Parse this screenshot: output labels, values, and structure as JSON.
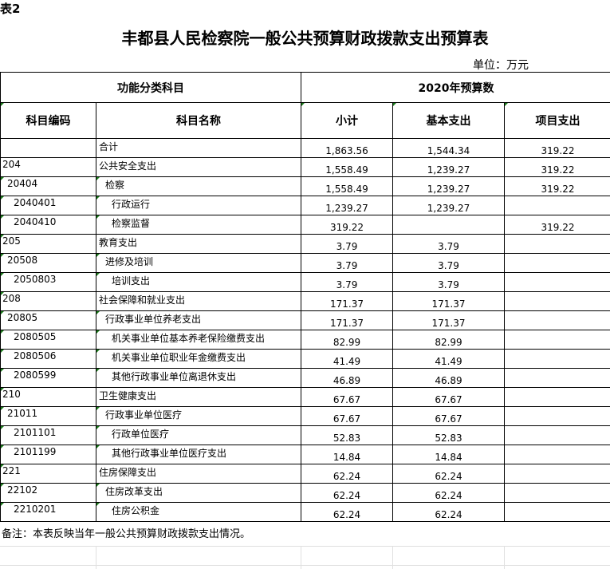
{
  "table_tag": "表2",
  "title": "丰都县人民检察院一般公共预算财政拨款支出预算表",
  "unit": "单位：万元",
  "header": {
    "group_left": "功能分类科目",
    "group_right": "2020年预算数",
    "code": "科目编码",
    "name": "科目名称",
    "subtotal": "小计",
    "basic": "基本支出",
    "project": "项目支出"
  },
  "rows": [
    {
      "code": "",
      "name": "合计",
      "subtotal": "1,863.56",
      "basic": "1,544.34",
      "project": "319.22",
      "level": 0
    },
    {
      "code": "204",
      "name": "公共安全支出",
      "subtotal": "1,558.49",
      "basic": "1,239.27",
      "project": "319.22",
      "level": 0
    },
    {
      "code": "20404",
      "name": "检察",
      "subtotal": "1,558.49",
      "basic": "1,239.27",
      "project": "319.22",
      "level": 1
    },
    {
      "code": "2040401",
      "name": "行政运行",
      "subtotal": "1,239.27",
      "basic": "1,239.27",
      "project": "",
      "level": 2
    },
    {
      "code": "2040410",
      "name": "检察监督",
      "subtotal": "319.22",
      "basic": "",
      "project": "319.22",
      "level": 2
    },
    {
      "code": "205",
      "name": "教育支出",
      "subtotal": "3.79",
      "basic": "3.79",
      "project": "",
      "level": 0
    },
    {
      "code": "20508",
      "name": "进修及培训",
      "subtotal": "3.79",
      "basic": "3.79",
      "project": "",
      "level": 1
    },
    {
      "code": "2050803",
      "name": "培训支出",
      "subtotal": "3.79",
      "basic": "3.79",
      "project": "",
      "level": 2
    },
    {
      "code": "208",
      "name": "社会保障和就业支出",
      "subtotal": "171.37",
      "basic": "171.37",
      "project": "",
      "level": 0
    },
    {
      "code": "20805",
      "name": "行政事业单位养老支出",
      "subtotal": "171.37",
      "basic": "171.37",
      "project": "",
      "level": 1
    },
    {
      "code": "2080505",
      "name": "机关事业单位基本养老保险缴费支出",
      "subtotal": "82.99",
      "basic": "82.99",
      "project": "",
      "level": 2
    },
    {
      "code": "2080506",
      "name": "机关事业单位职业年金缴费支出",
      "subtotal": "41.49",
      "basic": "41.49",
      "project": "",
      "level": 2
    },
    {
      "code": "2080599",
      "name": "其他行政事业单位离退休支出",
      "subtotal": "46.89",
      "basic": "46.89",
      "project": "",
      "level": 2
    },
    {
      "code": "210",
      "name": "卫生健康支出",
      "subtotal": "67.67",
      "basic": "67.67",
      "project": "",
      "level": 0
    },
    {
      "code": "21011",
      "name": "行政事业单位医疗",
      "subtotal": "67.67",
      "basic": "67.67",
      "project": "",
      "level": 1
    },
    {
      "code": "2101101",
      "name": "行政单位医疗",
      "subtotal": "52.83",
      "basic": "52.83",
      "project": "",
      "level": 2
    },
    {
      "code": "2101199",
      "name": "其他行政事业单位医疗支出",
      "subtotal": "14.84",
      "basic": "14.84",
      "project": "",
      "level": 2
    },
    {
      "code": "221",
      "name": "住房保障支出",
      "subtotal": "62.24",
      "basic": "62.24",
      "project": "",
      "level": 0
    },
    {
      "code": "22102",
      "name": "住房改革支出",
      "subtotal": "62.24",
      "basic": "62.24",
      "project": "",
      "level": 1
    },
    {
      "code": "2210201",
      "name": "住房公积金",
      "subtotal": "62.24",
      "basic": "62.24",
      "project": "",
      "level": 2
    }
  ],
  "note": "备注：本表反映当年一般公共预算财政拨款支出情况。"
}
